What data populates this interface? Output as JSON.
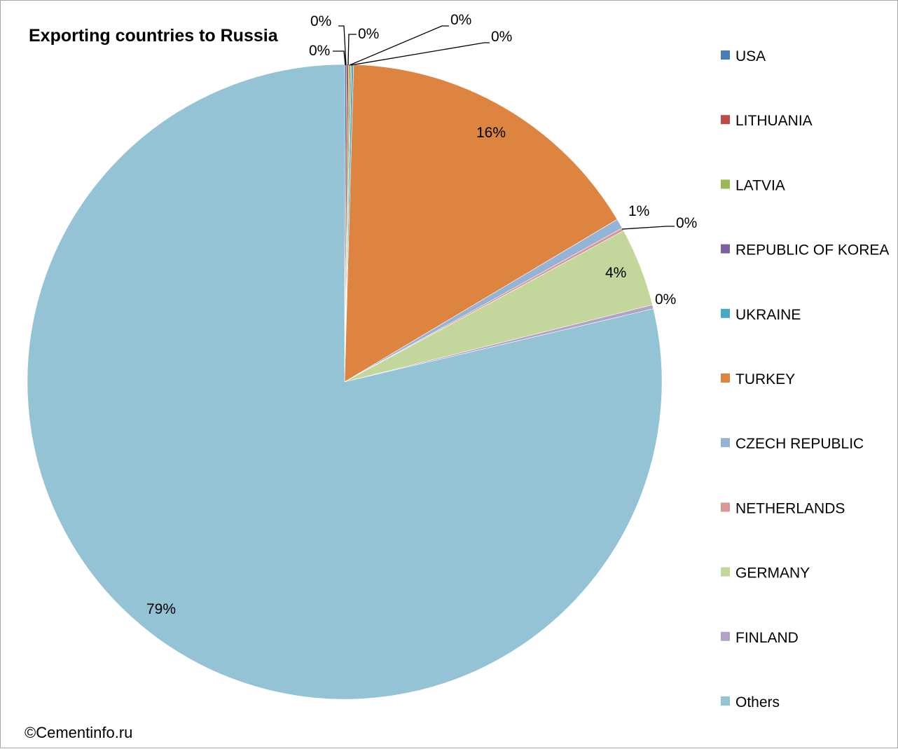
{
  "chart_data": {
    "type": "pie",
    "title": "Exporting countries to Russia",
    "slices": [
      {
        "label": "USA",
        "value": 0.1,
        "display": "0%",
        "color": "#4a7ebb"
      },
      {
        "label": "LITHUANIA",
        "value": 0.1,
        "display": "0%",
        "color": "#be4b48"
      },
      {
        "label": "LATVIA",
        "value": 0.1,
        "display": "0%",
        "color": "#98b954"
      },
      {
        "label": "REPUBLIC OF KOREA",
        "value": 0.05,
        "display": "0%",
        "color": "#7d60a0"
      },
      {
        "label": "UKRAINE",
        "value": 0.1,
        "display": "0%",
        "color": "#46aac4"
      },
      {
        "label": "TURKEY",
        "value": 16,
        "display": "16%",
        "color": "#dd8440"
      },
      {
        "label": "CZECH REPUBLIC",
        "value": 0.5,
        "display": "1%",
        "color": "#95b3d7"
      },
      {
        "label": "NETHERLANDS",
        "value": 0.15,
        "display": "0%",
        "color": "#d99795"
      },
      {
        "label": "GERMANY",
        "value": 4,
        "display": "4%",
        "color": "#c3d69b"
      },
      {
        "label": "FINLAND",
        "value": 0.2,
        "display": "0%",
        "color": "#b3a2c7"
      },
      {
        "label": "Others",
        "value": 78.7,
        "display": "79%",
        "color": "#93c3d5"
      }
    ],
    "legend_position": "right"
  },
  "copyright": "©Cementinfo.ru"
}
